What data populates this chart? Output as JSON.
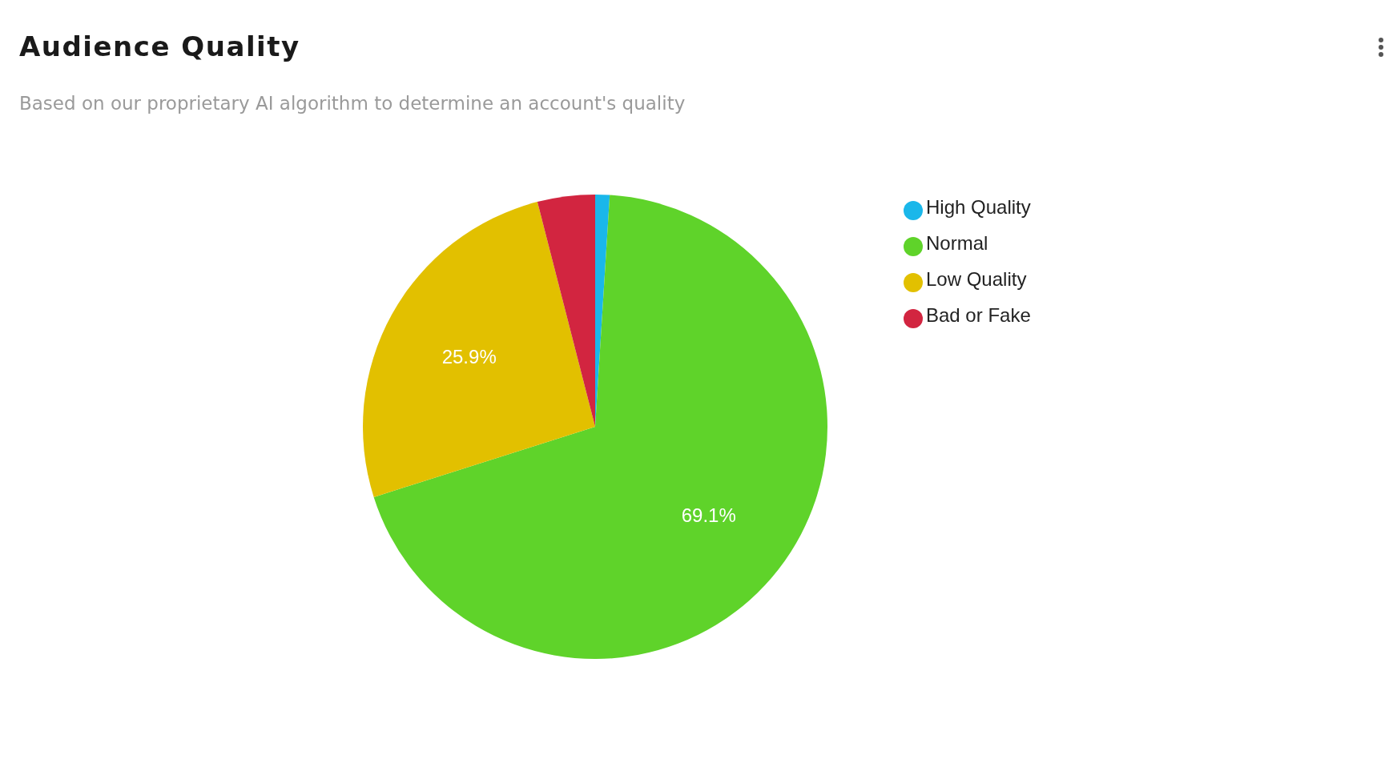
{
  "chart_data": {
    "type": "pie",
    "title": "Audience Quality",
    "subtitle": "Based on our proprietary AI algorithm to determine an account's quality",
    "categories": [
      "High Quality",
      "Normal",
      "Low Quality",
      "Bad or Fake"
    ],
    "values": [
      1,
      69.1,
      25.9,
      4
    ],
    "colors": [
      "#1ab7ea",
      "#5fd32a",
      "#e2c000",
      "#d22540"
    ],
    "value_labels": [
      null,
      "69.1%",
      "25.9%",
      null
    ],
    "legend": "right"
  }
}
